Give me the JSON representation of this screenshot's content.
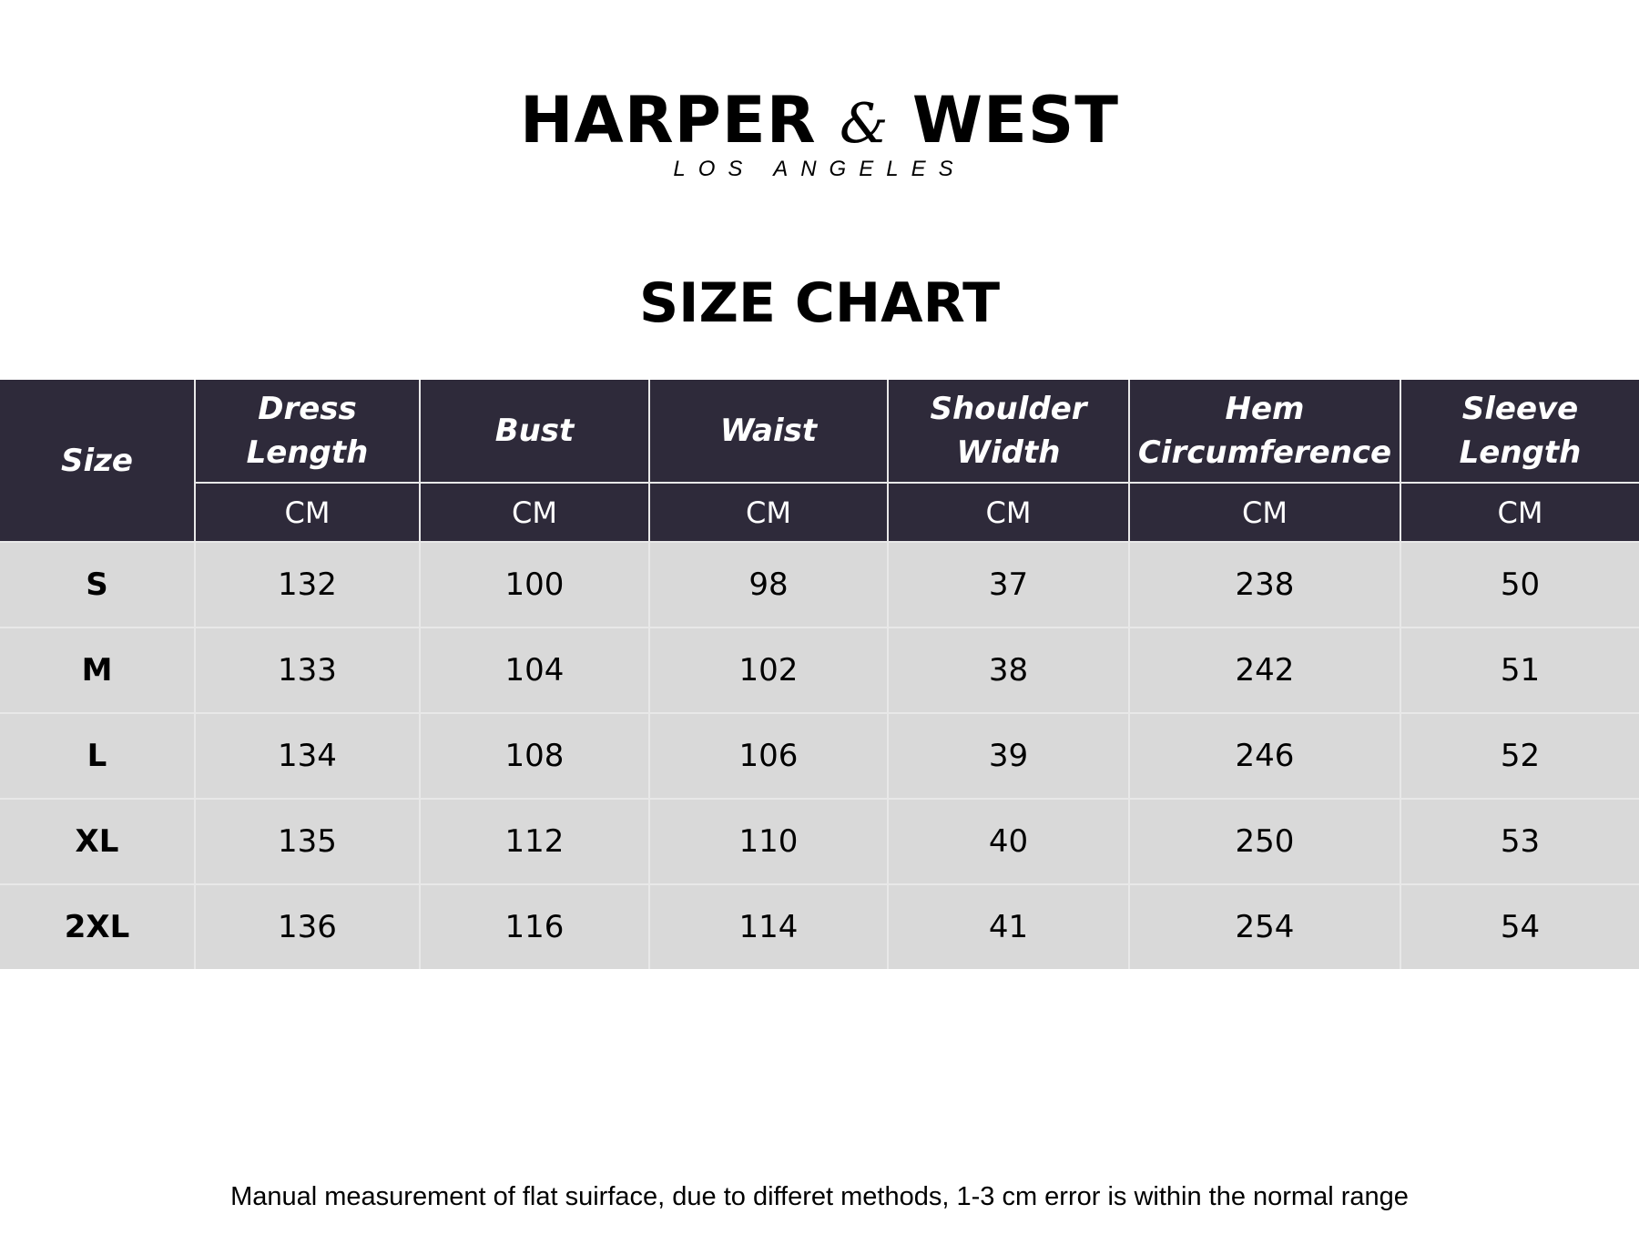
{
  "brand": {
    "name_left": "HARPER",
    "ampersand": "&",
    "name_right": "WEST",
    "subtitle": "LOS ANGELES"
  },
  "title": "SIZE CHART",
  "table": {
    "size_header": "Size",
    "columns": [
      {
        "label": "Dress Length",
        "unit": "CM"
      },
      {
        "label": "Bust",
        "unit": "CM"
      },
      {
        "label": "Waist",
        "unit": "CM"
      },
      {
        "label": "Shoulder Width",
        "unit": "CM"
      },
      {
        "label": "Hem Circumference",
        "unit": "CM"
      },
      {
        "label": "Sleeve Length",
        "unit": "CM"
      }
    ],
    "rows": [
      {
        "size": "S",
        "values": [
          "132",
          "100",
          "98",
          "37",
          "238",
          "50"
        ]
      },
      {
        "size": "M",
        "values": [
          "133",
          "104",
          "102",
          "38",
          "242",
          "51"
        ]
      },
      {
        "size": "L",
        "values": [
          "134",
          "108",
          "106",
          "39",
          "246",
          "52"
        ]
      },
      {
        "size": "XL",
        "values": [
          "135",
          "112",
          "110",
          "40",
          "250",
          "53"
        ]
      },
      {
        "size": "2XL",
        "values": [
          "136",
          "116",
          "114",
          "41",
          "254",
          "54"
        ]
      }
    ]
  },
  "footnote": "Manual measurement of flat suirface, due to differet methods, 1-3 cm error is within the normal range",
  "colors": {
    "header_bg": "#2e2a3a",
    "row_bg": "#d9d9d9"
  }
}
